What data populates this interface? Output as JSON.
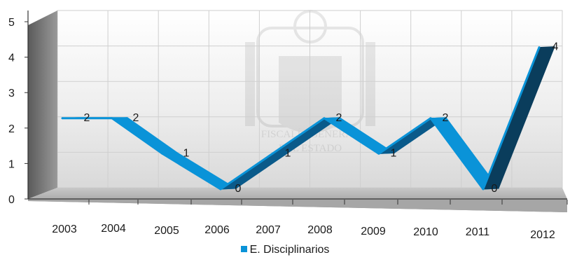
{
  "chart_data": {
    "type": "line",
    "style": "3d-ribbon",
    "categories": [
      "2003",
      "2004",
      "2005",
      "2006",
      "2007",
      "2008",
      "2009",
      "2010",
      "2011",
      "2012"
    ],
    "series": [
      {
        "name": "E. Disciplinarios",
        "values": [
          2,
          2,
          1,
          0,
          1,
          2,
          1,
          2,
          0,
          4
        ],
        "color": "#0a93d8"
      }
    ],
    "data_labels": [
      "2",
      "2",
      "1",
      "0",
      "1",
      "2",
      "1",
      "2",
      "0",
      "4"
    ],
    "ylim": [
      0,
      5
    ],
    "yticks": [
      "0",
      "1",
      "2",
      "3",
      "4",
      "5"
    ],
    "grid": true,
    "legend_position": "bottom",
    "watermark_text": "FISCALÍA GENERAL DEL ESTADO",
    "colors": {
      "ribbon_top": "#0a93d8",
      "ribbon_side": "#0a5a8a",
      "ribbon_dark": "#0a3d5c",
      "wall": "#7a7a7a",
      "floor": "#9a9a9a",
      "plot_bg": "#f2f2f2"
    }
  }
}
